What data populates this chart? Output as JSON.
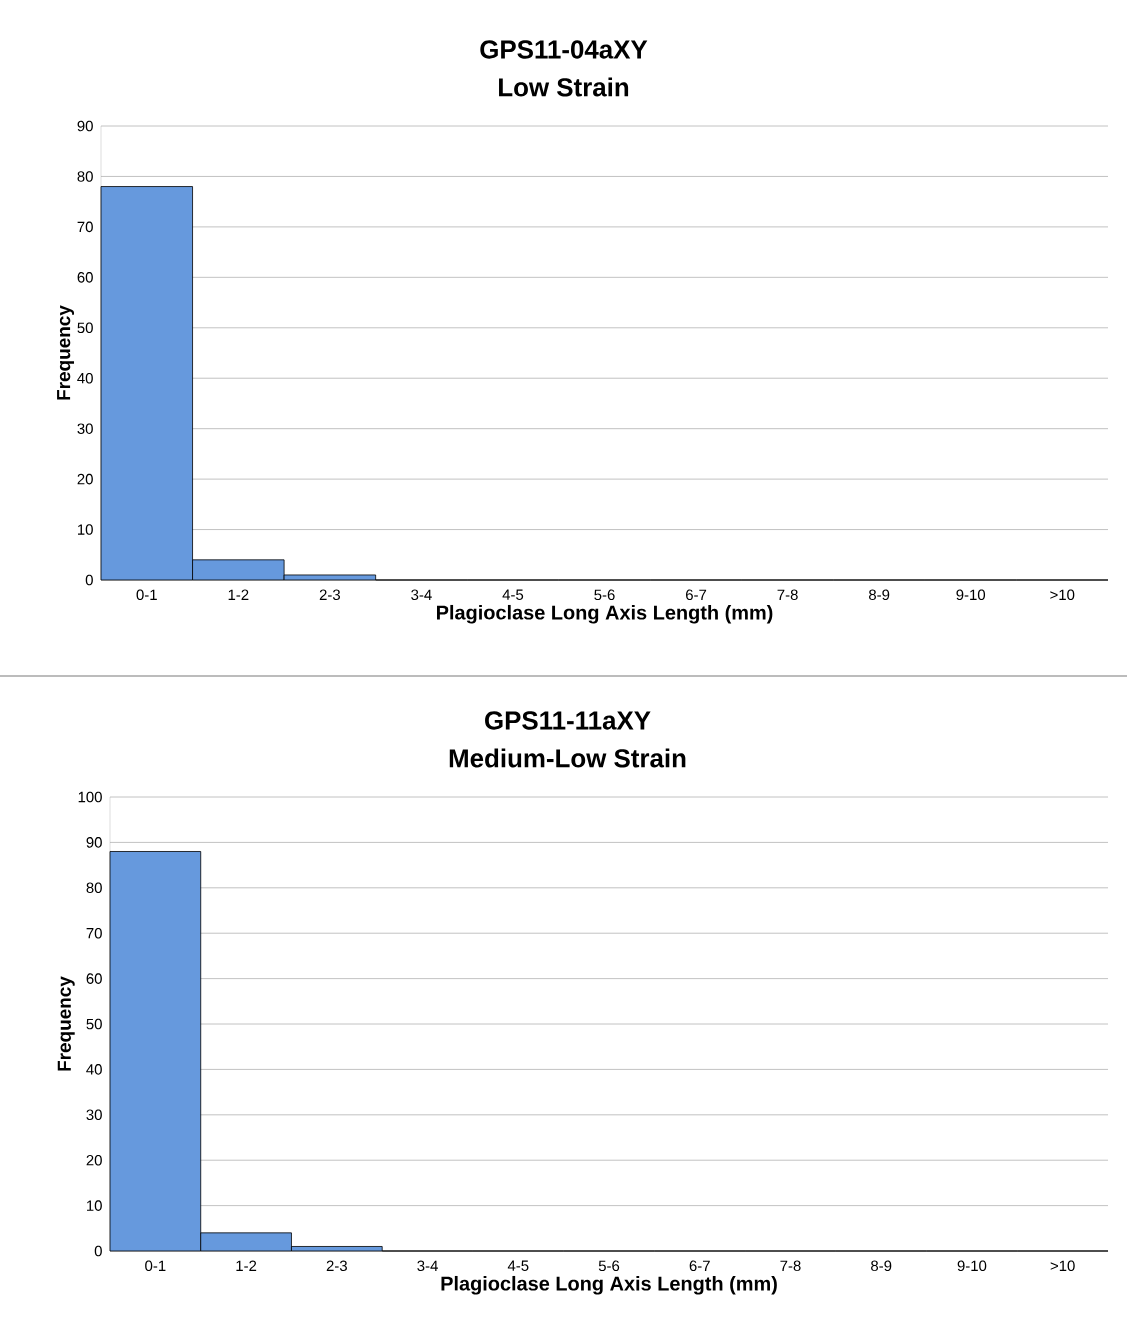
{
  "chart_data": [
    {
      "type": "bar",
      "title": "GPS11-04aXY",
      "subtitle": "Low Strain",
      "xlabel": "Plagioclase Long Axis Length (mm)",
      "ylabel": "Frequency",
      "categories": [
        "0-1",
        "1-2",
        "2-3",
        "3-4",
        "4-5",
        "5-6",
        "6-7",
        "7-8",
        "8-9",
        "9-10",
        ">10"
      ],
      "values": [
        78,
        4,
        1,
        0,
        0,
        0,
        0,
        0,
        0,
        0,
        0
      ],
      "color": "#6699dd",
      "ylim": [
        0,
        90
      ],
      "yticks": [
        0,
        10,
        20,
        30,
        40,
        50,
        60,
        70,
        80,
        90
      ],
      "grid": "y"
    },
    {
      "type": "bar",
      "title": "GPS11-11aXY",
      "subtitle": "Medium-Low Strain",
      "xlabel": "Plagioclase Long Axis Length (mm)",
      "ylabel": "Frequency",
      "categories": [
        "0-1",
        "1-2",
        "2-3",
        "3-4",
        "4-5",
        "5-6",
        "6-7",
        "7-8",
        "8-9",
        "9-10",
        ">10"
      ],
      "values": [
        88,
        4,
        1,
        0,
        0,
        0,
        0,
        0,
        0,
        0,
        0
      ],
      "color": "#6699dd",
      "ylim": [
        0,
        100
      ],
      "yticks": [
        0,
        10,
        20,
        30,
        40,
        50,
        60,
        70,
        80,
        90,
        100
      ],
      "grid": "y"
    }
  ]
}
